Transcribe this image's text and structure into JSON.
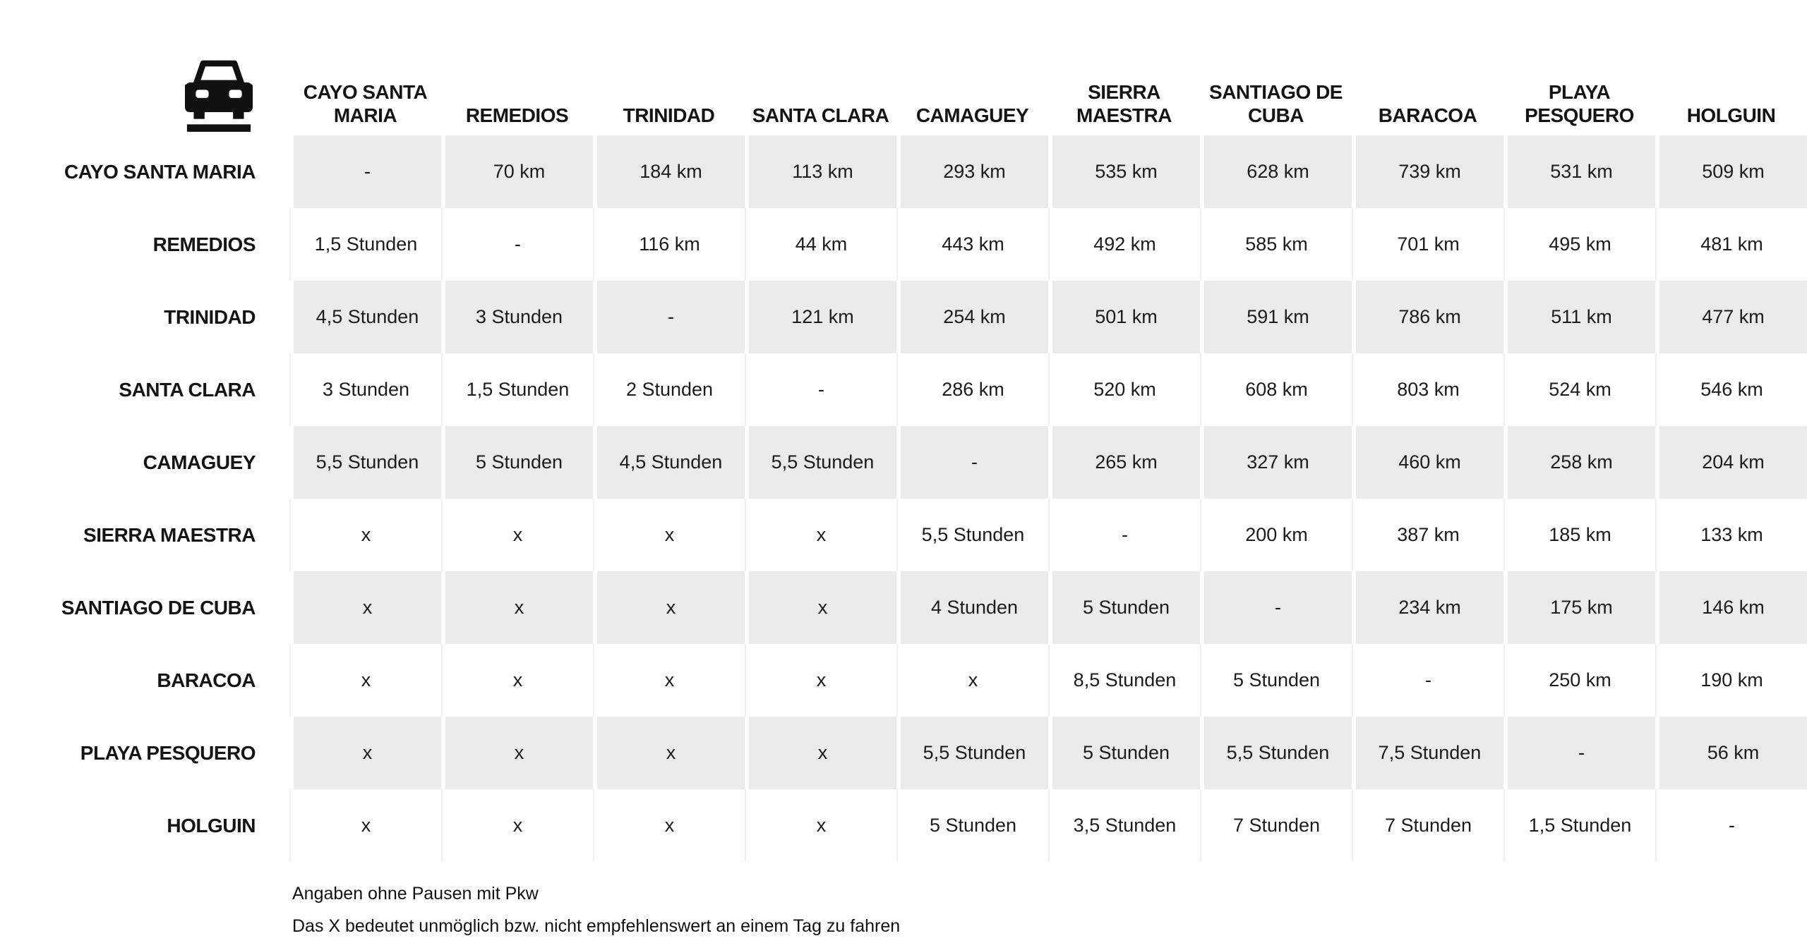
{
  "chart_data": {
    "type": "table",
    "title": "",
    "corner_icon": "car-front-icon",
    "columns": [
      "CAYO SANTA MARIA",
      "REMEDIOS",
      "TRINIDAD",
      "SANTA CLARA",
      "CAMAGUEY",
      "SIERRA MAESTRA",
      "SANTIAGO DE CUBA",
      "BARACOA",
      "PLAYA PESQUERO",
      "HOLGUIN"
    ],
    "rows": [
      {
        "label": "CAYO SANTA MARIA",
        "cells": [
          "-",
          "70 km",
          "184 km",
          "113 km",
          "293 km",
          "535 km",
          "628 km",
          "739 km",
          "531 km",
          "509 km"
        ]
      },
      {
        "label": "REMEDIOS",
        "cells": [
          "1,5 Stunden",
          "-",
          "116 km",
          "44 km",
          "443 km",
          "492 km",
          "585 km",
          "701 km",
          "495 km",
          "481 km"
        ]
      },
      {
        "label": "TRINIDAD",
        "cells": [
          "4,5 Stunden",
          "3 Stunden",
          "-",
          "121 km",
          "254 km",
          "501 km",
          "591 km",
          "786 km",
          "511 km",
          "477 km"
        ]
      },
      {
        "label": "SANTA CLARA",
        "cells": [
          "3 Stunden",
          "1,5 Stunden",
          "2 Stunden",
          "-",
          "286 km",
          "520 km",
          "608 km",
          "803 km",
          "524 km",
          "546 km"
        ]
      },
      {
        "label": "CAMAGUEY",
        "cells": [
          "5,5 Stunden",
          "5 Stunden",
          "4,5 Stunden",
          "5,5 Stunden",
          "-",
          "265 km",
          "327 km",
          "460 km",
          "258 km",
          "204 km"
        ]
      },
      {
        "label": "SIERRA MAESTRA",
        "cells": [
          "x",
          "x",
          "x",
          "x",
          "5,5 Stunden",
          "-",
          "200 km",
          "387 km",
          "185 km",
          "133 km"
        ]
      },
      {
        "label": "SANTIAGO DE CUBA",
        "cells": [
          "x",
          "x",
          "x",
          "x",
          "4 Stunden",
          "5 Stunden",
          "-",
          "234 km",
          "175 km",
          "146 km"
        ]
      },
      {
        "label": "BARACOA",
        "cells": [
          "x",
          "x",
          "x",
          "x",
          "x",
          "8,5 Stunden",
          "5 Stunden",
          "-",
          "250 km",
          "190 km"
        ]
      },
      {
        "label": "PLAYA PESQUERO",
        "cells": [
          "x",
          "x",
          "x",
          "x",
          "5,5 Stunden",
          "5 Stunden",
          "5,5 Stunden",
          "7,5 Stunden",
          "-",
          "56 km"
        ]
      },
      {
        "label": "HOLGUIN",
        "cells": [
          "x",
          "x",
          "x",
          "x",
          "5 Stunden",
          "3,5 Stunden",
          "7 Stunden",
          "7 Stunden",
          "1,5 Stunden",
          "-"
        ]
      }
    ],
    "units": {
      "above_diagonal": "km",
      "below_diagonal": "Stunden"
    },
    "layout": {
      "row_alternating_shading": true,
      "first_shaded_row_index": 0
    }
  },
  "footnotes": [
    "Angaben ohne Pausen mit Pkw",
    "Das X bedeutet unmöglich bzw. nicht empfehlenswert an einem Tag zu fahren"
  ],
  "colors": {
    "row_alt_background": "#ebebeb",
    "text": "#141414",
    "background": "#ffffff"
  }
}
